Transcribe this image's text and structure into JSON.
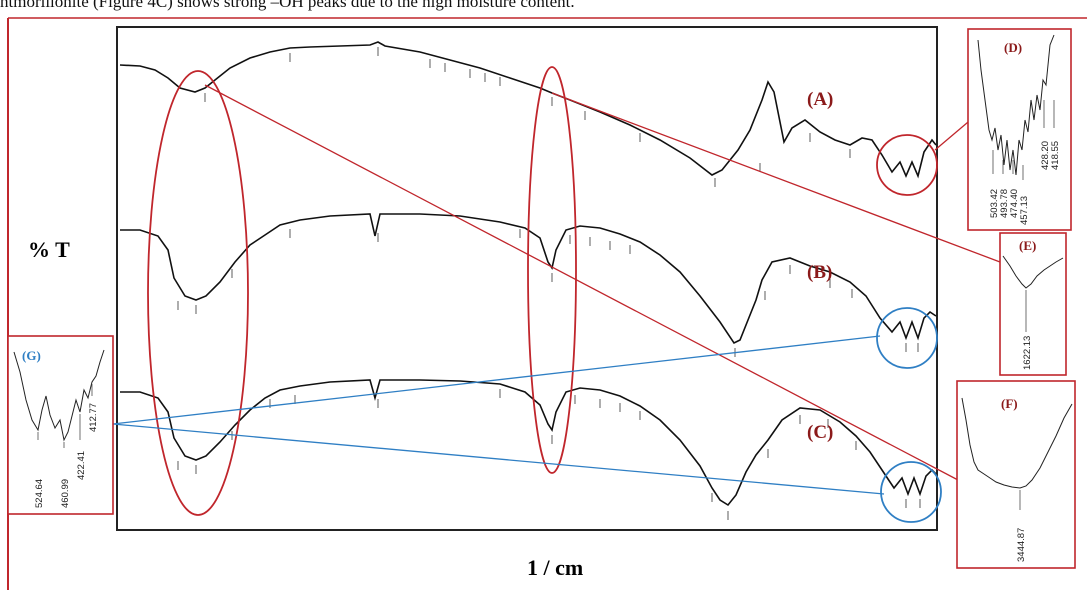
{
  "caption": "ntmorillonite (Figure 4C) shows strong –OH peaks due to the high moisture content.",
  "colors": {
    "accent_red": "#c0262c",
    "accent_blue": "#2f7fc4",
    "label_red": "#8b1a1a",
    "label_blue": "#2f7fc4"
  },
  "chart_data": {
    "type": "line",
    "title": "",
    "xlabel": "1 / cm",
    "ylabel": "% T",
    "spectra": [
      {
        "name": "(A)"
      },
      {
        "name": "(B)"
      },
      {
        "name": "(C)"
      }
    ],
    "insets": [
      {
        "label": "(D)",
        "wavenumbers": [
          "503.42",
          "493.78",
          "474.40",
          "457.13",
          "428.20",
          "418.55"
        ]
      },
      {
        "label": "(E)",
        "wavenumbers": [
          "1622.13"
        ]
      },
      {
        "label": "(F)",
        "wavenumbers": [
          "3444.87"
        ]
      },
      {
        "label": "(G)",
        "wavenumbers": [
          "524.64",
          "460.99",
          "422.41",
          "412.77"
        ]
      }
    ]
  }
}
